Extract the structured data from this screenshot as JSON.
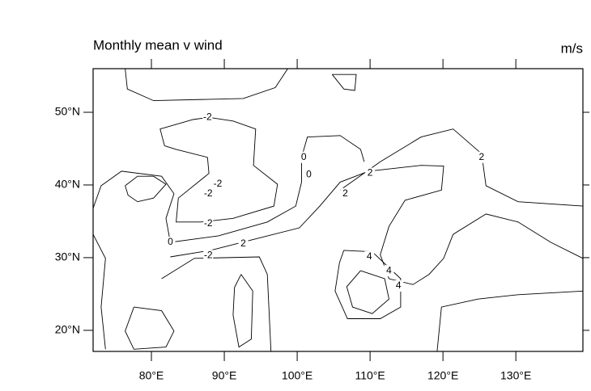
{
  "chart_data": {
    "type": "contour",
    "title": "Monthly mean v wind",
    "units": "m/s",
    "xlim": [
      72,
      139.2
    ],
    "ylim": [
      17.1,
      56
    ],
    "xticks": [
      {
        "value": 80,
        "label": "80°E"
      },
      {
        "value": 90,
        "label": "90°E"
      },
      {
        "value": 100,
        "label": "100°E"
      },
      {
        "value": 110,
        "label": "110°E"
      },
      {
        "value": 120,
        "label": "120°E"
      },
      {
        "value": 130,
        "label": "130°E"
      }
    ],
    "yticks": [
      {
        "value": 20,
        "label": "20°N"
      },
      {
        "value": 30,
        "label": "30°N"
      },
      {
        "value": 40,
        "label": "40°N"
      },
      {
        "value": 50,
        "label": "50°N"
      }
    ],
    "contours": [
      {
        "lon": [
          76.4,
          76.7,
          80.3,
          92.6,
          97,
          98.7
        ],
        "lat": [
          56,
          53.2,
          51.6,
          51.9,
          53.4,
          56
        ]
      },
      {
        "lon": [
          81.8,
          81.2,
          85.7,
          87.9,
          91.2,
          94.3,
          94,
          97.3,
          96.8,
          91.2,
          86.8,
          83.4,
          83.7,
          87.9,
          87.7,
          83.4,
          81.8
        ],
        "lat": [
          45.4,
          47.7,
          49,
          49.3,
          48.8,
          47.7,
          42.7,
          40.1,
          37.1,
          35.4,
          34.9,
          34.9,
          38.2,
          41.6,
          43.8,
          44.9,
          45.4
        ]
      },
      {
        "lon": [
          76.4,
          78.1,
          80.3,
          82,
          80.3,
          78.1,
          76.8,
          76.4
        ],
        "lat": [
          39.9,
          41.2,
          41.2,
          40.1,
          38.2,
          37.7,
          38.6,
          39.9
        ]
      },
      {
        "lon": [
          72,
          73.1,
          75.9,
          81.4,
          83.1,
          82,
          82.6,
          89.2,
          95.9,
          99.8,
          100.6,
          100.6,
          101.4,
          105.9,
          108.7,
          109.2
        ],
        "lat": [
          36.8,
          39.9,
          41.9,
          41.2,
          38.8,
          35.4,
          32.1,
          33,
          34.9,
          37.1,
          40.4,
          43.8,
          46.6,
          46.8,
          44.9,
          43.2
        ]
      },
      {
        "lon": [
          82.6,
          88.1,
          94.8,
          100.3,
          103.1,
          105.9,
          109.8,
          117,
          120.1,
          119.8,
          114.8,
          112.6,
          111.4,
          112.6,
          115.9,
          118.1,
          120.1,
          121.4,
          125.9,
          130.3,
          134.8,
          139.2
        ],
        "lat": [
          30.1,
          31,
          32.7,
          34.1,
          37.1,
          40.4,
          41.9,
          42.7,
          42.6,
          39.3,
          37.9,
          34.3,
          30.4,
          27.1,
          26.3,
          27.7,
          29.9,
          33.2,
          36,
          34.9,
          32.1,
          29.9
        ]
      },
      {
        "lon": [
          105.9,
          111.4,
          117,
          121.4,
          125.3,
          125.9,
          130.3,
          139.2
        ],
        "lat": [
          39.3,
          43.2,
          46.6,
          47.7,
          44.3,
          39.9,
          37.7,
          37.1
        ]
      },
      {
        "lon": [
          104.8,
          108.1,
          107.9,
          106.4,
          104.8
        ],
        "lat": [
          55.2,
          55.2,
          53,
          53.2,
          55.2
        ]
      },
      {
        "lon": [
          77.6,
          81.4,
          83.1,
          82,
          77.6,
          76.4,
          77.6
        ],
        "lat": [
          23.2,
          22.7,
          19.9,
          17.7,
          17.4,
          19.9,
          23.2
        ]
      },
      {
        "lon": [
          92.3,
          93.9,
          93.7,
          92,
          91.2,
          91.4,
          92.3
        ],
        "lat": [
          27.7,
          25.4,
          18.8,
          17.7,
          22.1,
          25.9,
          27.7
        ]
      },
      {
        "lon": [
          108.7,
          112,
          112.6,
          110.3,
          107.6,
          106.8,
          108.7
        ],
        "lat": [
          28.2,
          27.1,
          24.3,
          22.3,
          23.2,
          26,
          28.2
        ]
      },
      {
        "lon": [
          106.4,
          110.3,
          114.2,
          114.2,
          111.4,
          106.9,
          105.2,
          105.8,
          106.4
        ],
        "lat": [
          31,
          30.8,
          27.1,
          23.2,
          21.6,
          21.6,
          25.4,
          29.3,
          31
        ]
      },
      {
        "lon": [
          72,
          73.7,
          73.1,
          73.7
        ],
        "lat": [
          33.2,
          29.9,
          23.2,
          17.4
        ]
      },
      {
        "lon": [
          81.4,
          85.9,
          94.8,
          95.9,
          96.4
        ],
        "lat": [
          27.1,
          29.9,
          30.1,
          27.7,
          17.1
        ]
      },
      {
        "lon": [
          119.2,
          119.8,
          124.8,
          130.3,
          139.2
        ],
        "lat": [
          17.1,
          23.2,
          24.3,
          24.9,
          25.4
        ]
      }
    ],
    "contour_labels": [
      {
        "value": -2,
        "lon": 87.7,
        "lat": 49.3
      },
      {
        "value": 0,
        "lon": 100.9,
        "lat": 43.8
      },
      {
        "value": 0,
        "lon": 101.6,
        "lat": 41.4
      },
      {
        "value": 2,
        "lon": 110,
        "lat": 41.6
      },
      {
        "value": 2,
        "lon": 106.6,
        "lat": 38.8
      },
      {
        "value": 2,
        "lon": 125.3,
        "lat": 43.8
      },
      {
        "value": -2,
        "lon": 89.1,
        "lat": 40.1
      },
      {
        "value": -2,
        "lon": 87.8,
        "lat": 38.8
      },
      {
        "value": -2,
        "lon": 87.8,
        "lat": 34.7
      },
      {
        "value": 0,
        "lon": 82.6,
        "lat": 32.1
      },
      {
        "value": 2,
        "lon": 92.6,
        "lat": 31.9
      },
      {
        "value": -2,
        "lon": 87.8,
        "lat": 30.3
      },
      {
        "value": 4,
        "lon": 109.9,
        "lat": 30.1
      },
      {
        "value": 4,
        "lon": 112.6,
        "lat": 28.2
      },
      {
        "value": 4,
        "lon": 113.9,
        "lat": 26.1
      }
    ]
  }
}
